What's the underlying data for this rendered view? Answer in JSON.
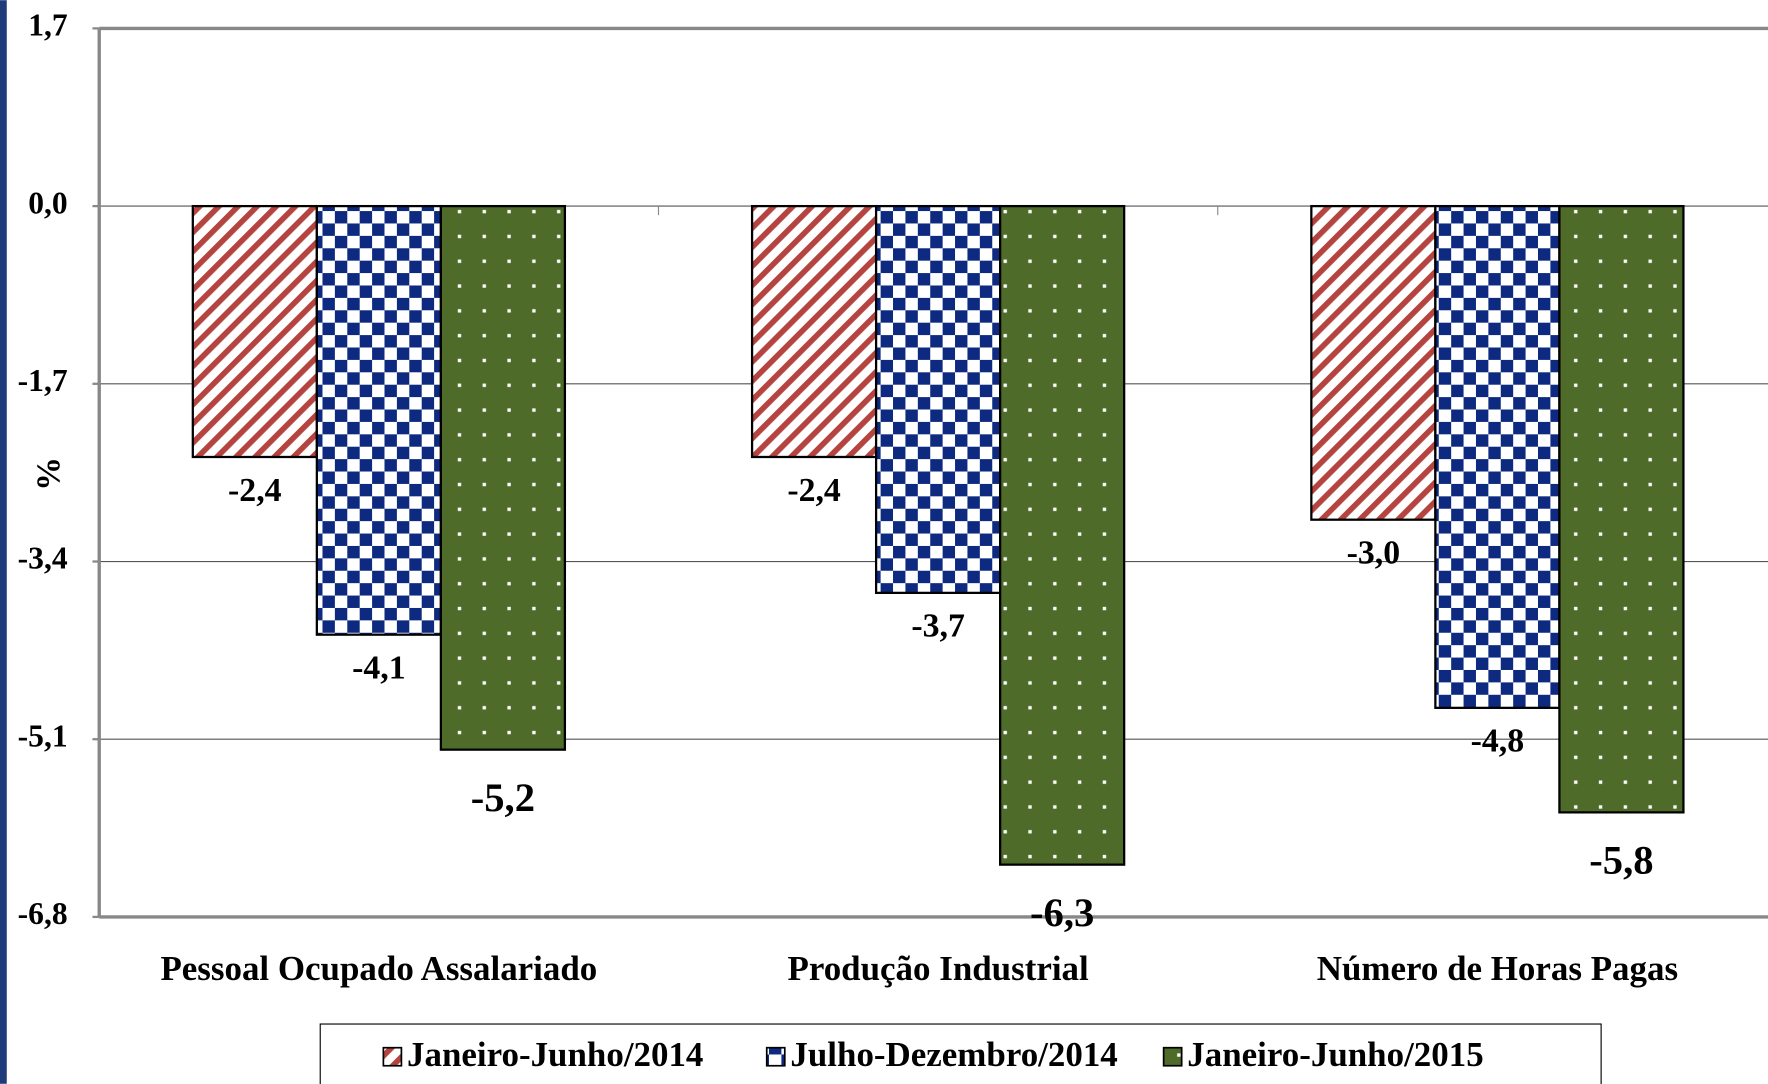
{
  "chart_data": {
    "type": "bar",
    "y_label": "%",
    "categories": [
      "Pessoal Ocupado Assalariado",
      "Produção Industrial",
      "Número de Horas Pagas"
    ],
    "series": [
      {
        "name": "Janeiro-Junho/2014",
        "color": "#b5433f",
        "values": [
          -2.4,
          -2.4,
          -3.0
        ],
        "value_labels": [
          "-2,4",
          "-2,4",
          "-3,0"
        ]
      },
      {
        "name": "Julho-Dezembro/2014",
        "color": "#0d2a80",
        "values": [
          -4.1,
          -3.7,
          -4.8
        ],
        "value_labels": [
          "-4,1",
          "-3,7",
          "-4,8"
        ]
      },
      {
        "name": "Janeiro-Junho/2015",
        "color": "#4e6b2a",
        "values": [
          -5.2,
          -6.3,
          -5.8
        ],
        "value_labels": [
          "-5,2",
          "-6,3",
          "-5,8"
        ]
      }
    ],
    "ylim": [
      -6.8,
      1.7
    ],
    "yticks": [
      {
        "value": 1.7,
        "label": "1,7"
      },
      {
        "value": 0,
        "label": "0,0"
      },
      {
        "value": -1.7,
        "label": "-1,7"
      },
      {
        "value": -3.4,
        "label": "-3,4"
      },
      {
        "value": -5.1,
        "label": "-5,1"
      },
      {
        "value": -6.8,
        "label": "-6,8"
      }
    ],
    "grid": true
  }
}
